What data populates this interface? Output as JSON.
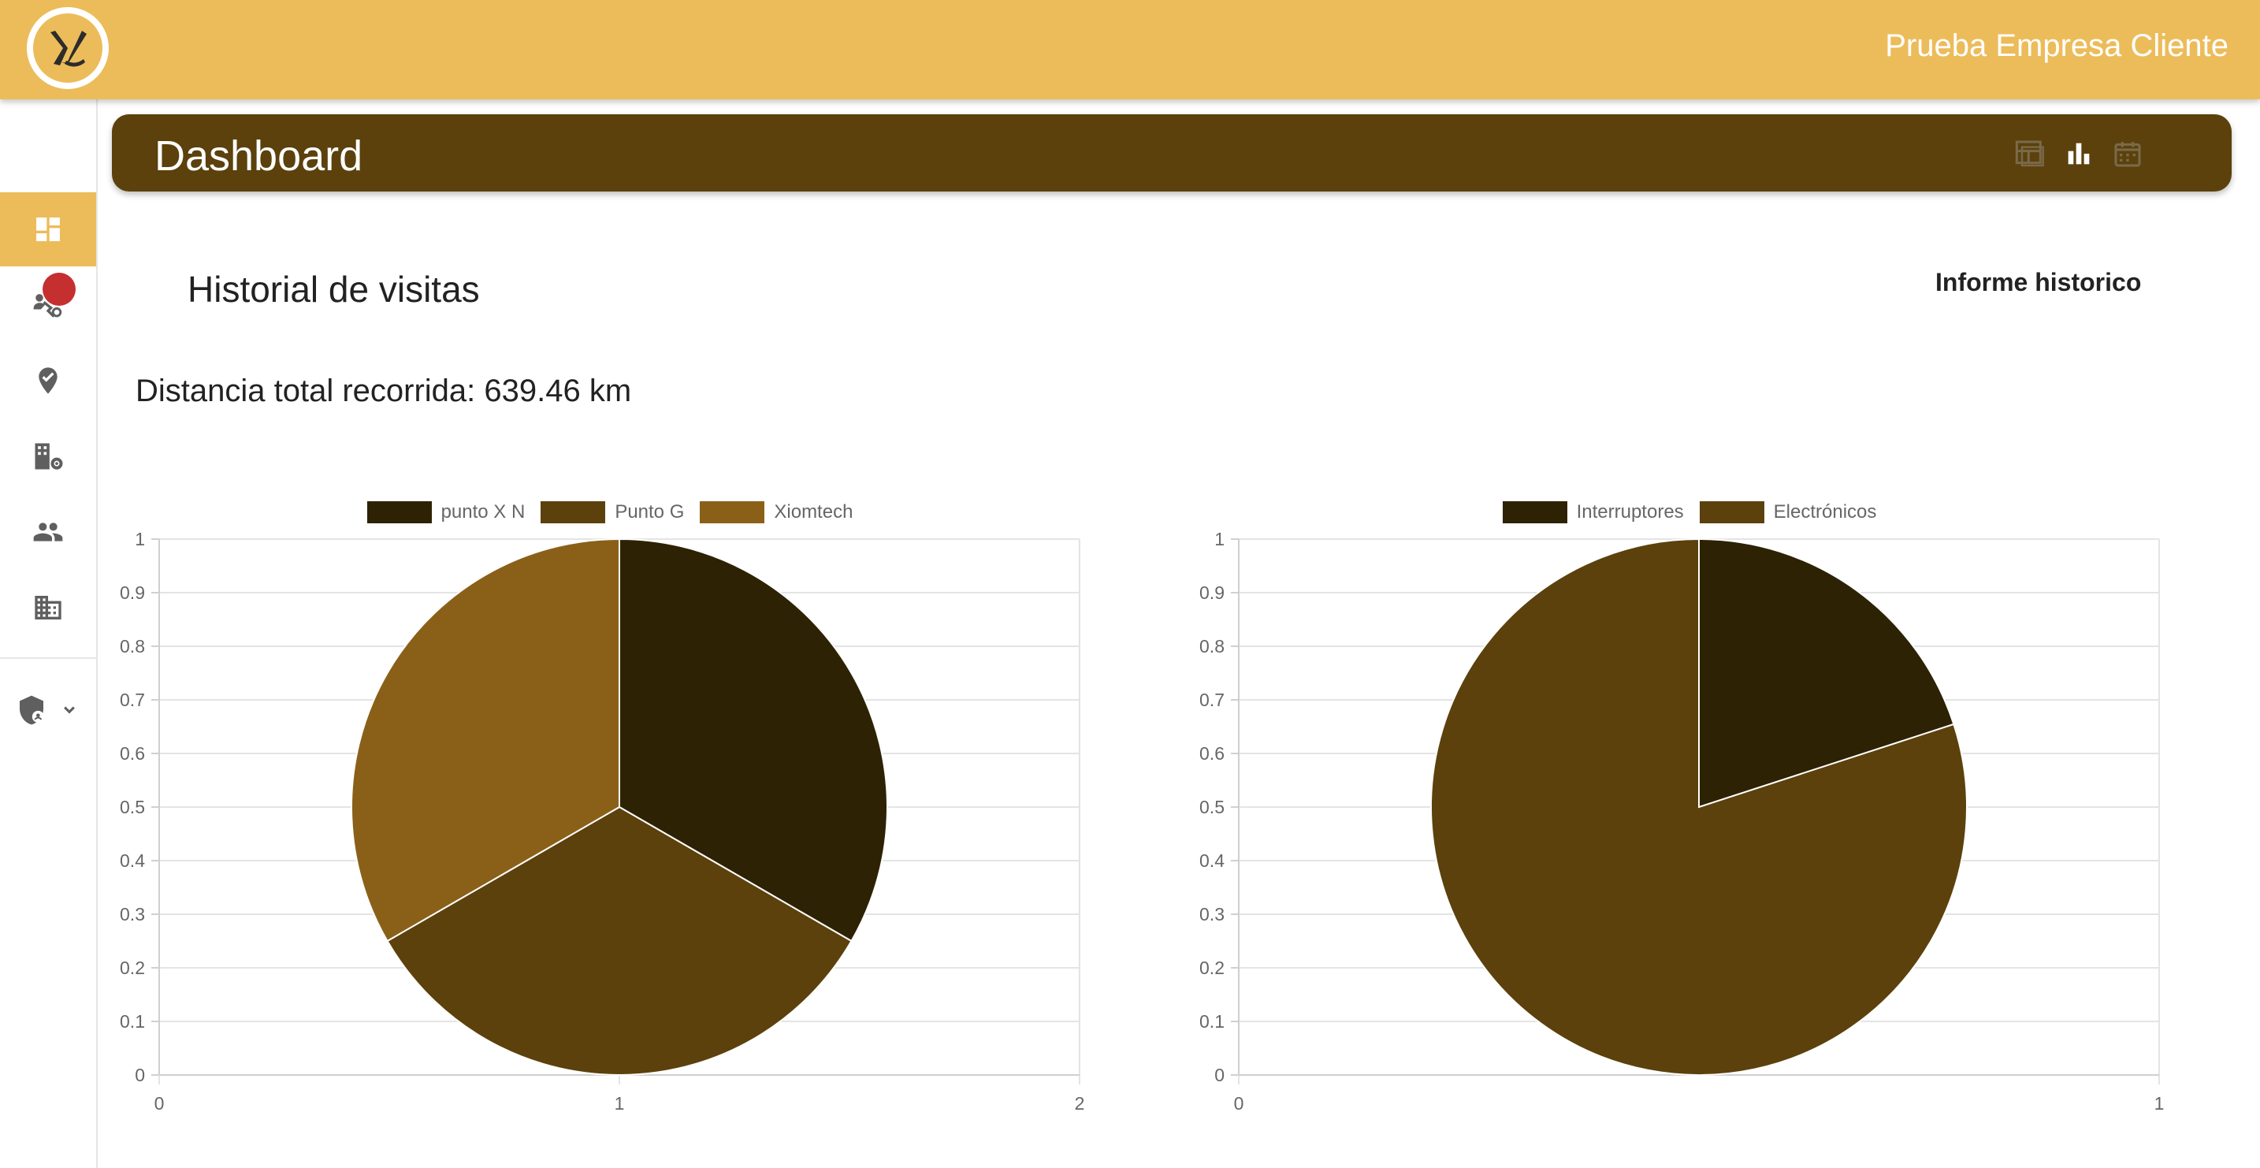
{
  "header": {
    "company": "Prueba Empresa Cliente"
  },
  "page": {
    "title": "Dashboard"
  },
  "header_icons": [
    "dashboard-layout-icon",
    "bar-chart-icon",
    "calendar-icon"
  ],
  "sidebar": {
    "items": [
      {
        "icon": "dashboard-icon",
        "active": true
      },
      {
        "icon": "visits-icon",
        "active": false,
        "badge": true
      },
      {
        "icon": "location-check-icon",
        "active": false
      },
      {
        "icon": "building-settings-icon",
        "active": false
      },
      {
        "icon": "users-icon",
        "active": false
      },
      {
        "icon": "company-icon",
        "active": false
      },
      {
        "icon": "admin-shield-icon",
        "active": false,
        "expandable": true
      }
    ]
  },
  "section": {
    "title": "Historial de visitas",
    "report_button": "Informe historico"
  },
  "distance": "Distancia total recorrida: 639.46 km",
  "colors": {
    "accent": "#ecbc5a",
    "header": "#5c410c",
    "badge": "#c62f2f"
  },
  "chart_data": [
    {
      "type": "pie",
      "labels": [
        "punto X N",
        "Punto G",
        "Xiomtech"
      ],
      "values": [
        1,
        1,
        1
      ],
      "colors": [
        "#2e2205",
        "#5c410c",
        "#8a6019"
      ],
      "yticks": [
        "0",
        "0.1",
        "0.2",
        "0.3",
        "0.4",
        "0.5",
        "0.6",
        "0.7",
        "0.8",
        "0.9",
        "1"
      ],
      "xticks": [
        "0",
        "1",
        "2"
      ],
      "legend": "top",
      "grid": true
    },
    {
      "type": "pie",
      "labels": [
        "Interruptores",
        "Electrónicos"
      ],
      "values": [
        1,
        4
      ],
      "colors": [
        "#2e2205",
        "#5c410c"
      ],
      "yticks": [
        "0",
        "0.1",
        "0.2",
        "0.3",
        "0.4",
        "0.5",
        "0.6",
        "0.7",
        "0.8",
        "0.9",
        "1"
      ],
      "xticks": [
        "0",
        "1"
      ],
      "legend": "top",
      "grid": true
    }
  ]
}
